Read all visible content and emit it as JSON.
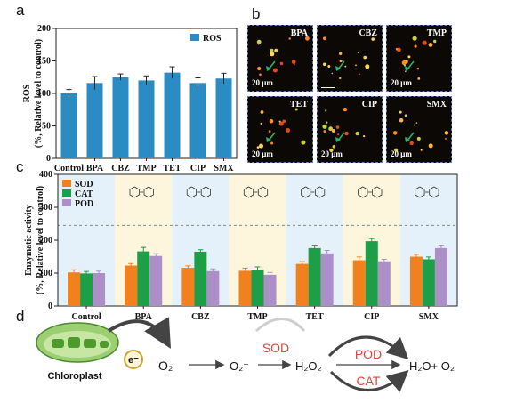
{
  "panel_letters": {
    "a": "a",
    "b": "b",
    "c": "c",
    "d": "d"
  },
  "colors": {
    "ros": "#2b8cc4",
    "sod": "#f2811d",
    "cat": "#1e9e47",
    "pod": "#ab8fc6",
    "red_text": "#e0453a"
  },
  "chart_data": [
    {
      "type": "bar",
      "panel": "a",
      "categories": [
        "Control",
        "BPA",
        "CBZ",
        "TMP",
        "TET",
        "CIP",
        "SMX"
      ],
      "series": [
        {
          "name": "ROS",
          "values": [
            100,
            116,
            125,
            120,
            132,
            116,
            123
          ],
          "errors": [
            6,
            10,
            5,
            7,
            9,
            8,
            8
          ]
        }
      ],
      "ylabel": "ROS",
      "ylabel2": "(%, Relative level to control)",
      "ylim": [
        0,
        200
      ],
      "yticks": [
        0,
        50,
        100,
        150,
        200
      ],
      "legend": "top-right",
      "grid": false
    },
    {
      "type": "bar",
      "panel": "c",
      "categories": [
        "Control",
        "BPA",
        "CBZ",
        "TMP",
        "TET",
        "CIP",
        "SMX"
      ],
      "series": [
        {
          "name": "SOD",
          "values": [
            102,
            123,
            116,
            107,
            128,
            139,
            150
          ],
          "errors": [
            8,
            6,
            6,
            8,
            7,
            10,
            7
          ]
        },
        {
          "name": "CAT",
          "values": [
            99,
            166,
            165,
            110,
            176,
            197,
            142
          ],
          "errors": [
            6,
            12,
            6,
            9,
            9,
            8,
            7
          ]
        },
        {
          "name": "POD",
          "values": [
            100,
            152,
            106,
            95,
            160,
            136,
            176
          ],
          "errors": [
            6,
            7,
            7,
            7,
            9,
            6,
            9
          ]
        }
      ],
      "ylabel": "Enzymatic activity",
      "ylabel2": "(%, Relative level to control)",
      "ylim": [
        0,
        400
      ],
      "yticks": [
        0,
        100,
        200,
        300,
        400
      ],
      "reference_line": 245,
      "legend": "top-left",
      "grid": false
    }
  ],
  "micrographs": {
    "scale": "20 μm",
    "tiles": [
      {
        "label": "BPA",
        "show_scale": true
      },
      {
        "label": "CBZ",
        "show_scale": false
      },
      {
        "label": "TMP",
        "show_scale": true
      },
      {
        "label": "TET",
        "show_scale": true
      },
      {
        "label": "CIP",
        "show_scale": true
      },
      {
        "label": "SMX",
        "show_scale": true
      }
    ]
  },
  "pathway": {
    "chloroplast": "Chloroplast",
    "electron": "e⁻",
    "o2": "O₂",
    "superoxide": "O₂⁻",
    "sod": "SOD",
    "h2o2": "H₂O₂",
    "pod": "POD",
    "cat": "CAT",
    "products": "H₂O+ O₂"
  }
}
